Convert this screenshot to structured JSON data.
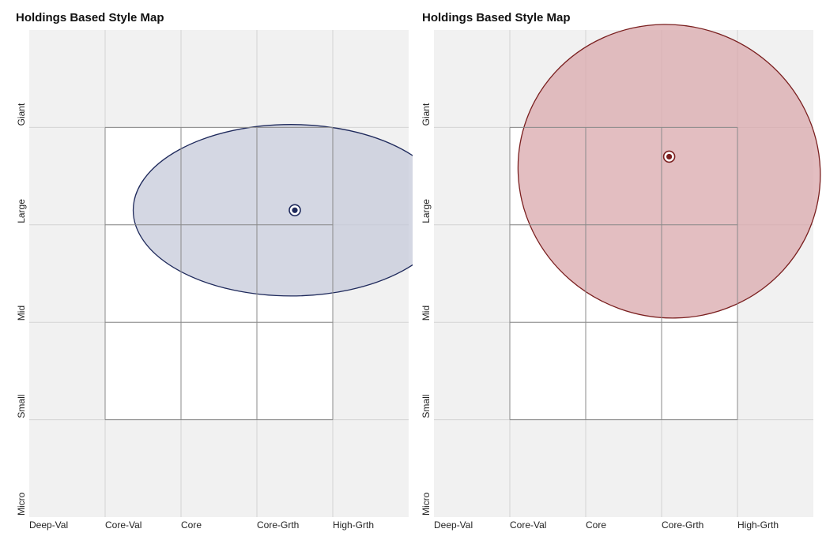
{
  "charts": [
    {
      "title": "Holdings Based Style Map",
      "accent": "#1f2a5c",
      "fill": "#c5cad9",
      "centroid": {
        "x": 1.5,
        "y": 1.15
      },
      "ellipse": {
        "cx": 1.45,
        "cy": 1.15,
        "rx": 2.08,
        "ry": 0.88,
        "rotation_deg": 0
      }
    },
    {
      "title": "Holdings Based Style Map",
      "accent": "#7a1f1f",
      "fill": "#d9a8ac",
      "centroid": {
        "x": 1.1,
        "y": 1.7
      },
      "ellipse": {
        "cx": 1.1,
        "cy": 1.55,
        "rx": 2.0,
        "ry": 1.5,
        "rotation_deg": 20
      }
    }
  ],
  "chart_data": [
    {
      "type": "scatter",
      "title": "Holdings Based Style Map",
      "x_categories": [
        "Deep-Val",
        "Core-Val",
        "Core",
        "Core-Grth",
        "High-Grth"
      ],
      "y_categories": [
        "Micro",
        "Small",
        "Mid",
        "Large",
        "Giant"
      ],
      "xlim": [
        -2,
        3
      ],
      "ylim": [
        -2,
        3
      ],
      "series": [
        {
          "values": [
            {
              "x": 1.5,
              "y": 1.15
            }
          ]
        }
      ]
    },
    {
      "type": "scatter",
      "title": "Holdings Based Style Map",
      "x_categories": [
        "Deep-Val",
        "Core-Val",
        "Core",
        "Core-Grth",
        "High-Grth"
      ],
      "y_categories": [
        "Micro",
        "Small",
        "Mid",
        "Large",
        "Giant"
      ],
      "xlim": [
        -2,
        3
      ],
      "ylim": [
        -2,
        3
      ],
      "series": [
        {
          "values": [
            {
              "x": 1.1,
              "y": 1.7
            }
          ]
        }
      ]
    }
  ]
}
